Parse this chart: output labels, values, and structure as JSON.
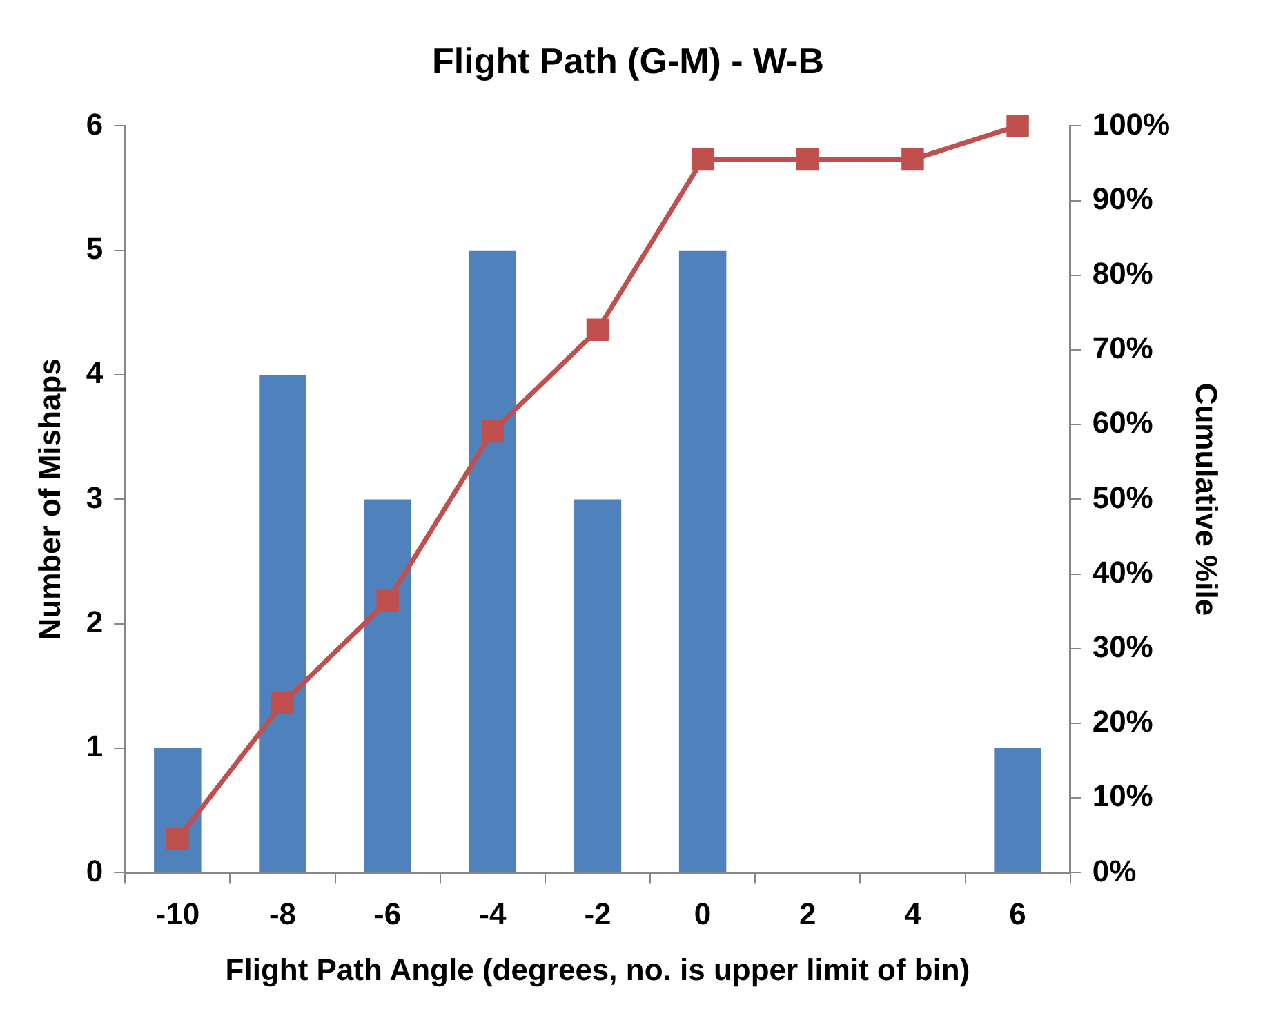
{
  "chart_data": {
    "type": "bar",
    "title": "Flight Path (G-M) - W-B",
    "xlabel": "Flight Path Angle (degrees, no. is upper limit of bin)",
    "ylabel": "Number of Mishaps",
    "y2label": "Cumulative %ile",
    "categories": [
      "-10",
      "-8",
      "-6",
      "-4",
      "-2",
      "0",
      "2",
      "4",
      "6"
    ],
    "series": [
      {
        "color": "#4f81bd",
        "values": [
          1,
          4,
          3,
          5,
          3,
          5,
          0,
          0,
          1
        ]
      },
      {
        "type": "line",
        "axis": "y2",
        "color": "#c0504d",
        "values": [
          4.5,
          22.7,
          36.4,
          59.1,
          72.7,
          95.5,
          95.5,
          95.5,
          100
        ]
      }
    ],
    "ylim": [
      0,
      6
    ],
    "yticks": [
      0,
      1,
      2,
      3,
      4,
      5,
      6
    ],
    "y2lim": [
      0,
      100
    ],
    "y2ticks": [
      {
        "value": 0,
        "label": "0%"
      },
      {
        "value": 10,
        "label": "10%"
      },
      {
        "value": 20,
        "label": "20%"
      },
      {
        "value": 30,
        "label": "30%"
      },
      {
        "value": 40,
        "label": "40%"
      },
      {
        "value": 50,
        "label": "50%"
      },
      {
        "value": 60,
        "label": "60%"
      },
      {
        "value": 70,
        "label": "70%"
      },
      {
        "value": 80,
        "label": "80%"
      },
      {
        "value": 90,
        "label": "90%"
      },
      {
        "value": 100,
        "label": "100%"
      }
    ],
    "grid": false,
    "legend": false,
    "marker": "square",
    "line_style": "solid"
  }
}
